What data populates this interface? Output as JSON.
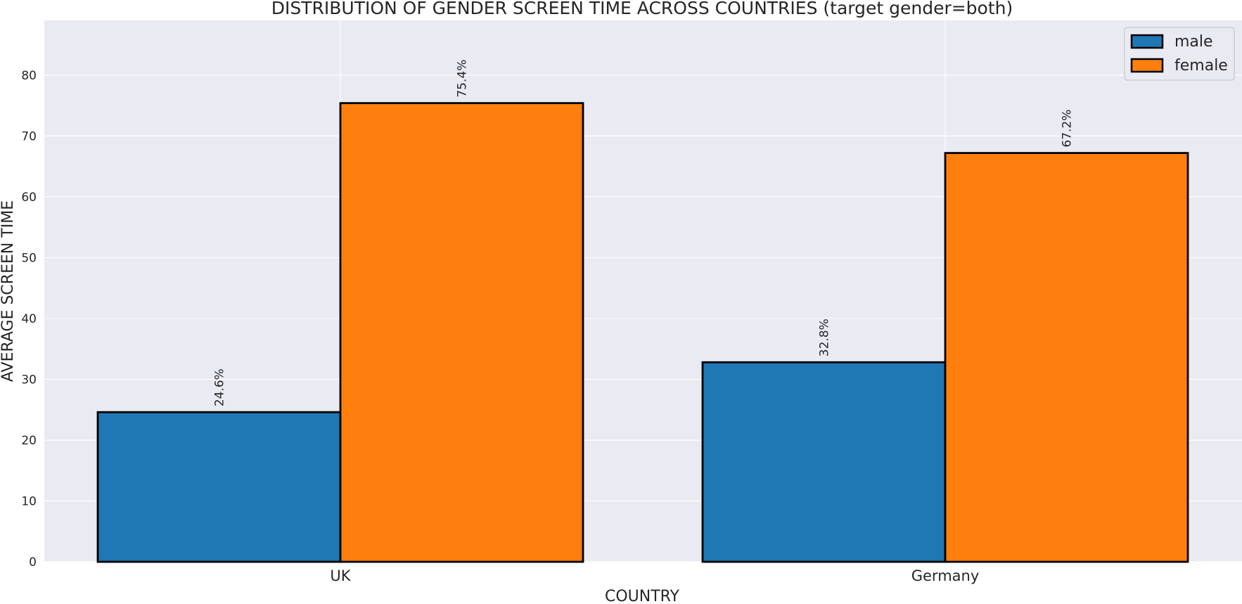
{
  "chart_data": {
    "type": "bar",
    "title": "DISTRIBUTION OF GENDER SCREEN TIME ACROSS COUNTRIES (target gender=both)",
    "xlabel": "COUNTRY",
    "ylabel": "AVERAGE SCREEN TIME",
    "categories": [
      "UK",
      "Germany"
    ],
    "series": [
      {
        "name": "male",
        "values": [
          24.6,
          32.8
        ],
        "labels": [
          "24.6%",
          "32.8%"
        ],
        "color": "#1f77b4"
      },
      {
        "name": "female",
        "values": [
          75.4,
          67.2
        ],
        "labels": [
          "75.4%",
          "67.2%"
        ],
        "color": "#ff7f0e"
      }
    ],
    "ylim": [
      0,
      89
    ],
    "yticks": [
      0,
      10,
      20,
      30,
      40,
      50,
      60,
      70,
      80
    ],
    "grid": true,
    "legend_position": "top-right",
    "colors": {
      "background": "#eaeaf2",
      "grid": "#ffffff",
      "bar_edge": "#000000"
    }
  }
}
